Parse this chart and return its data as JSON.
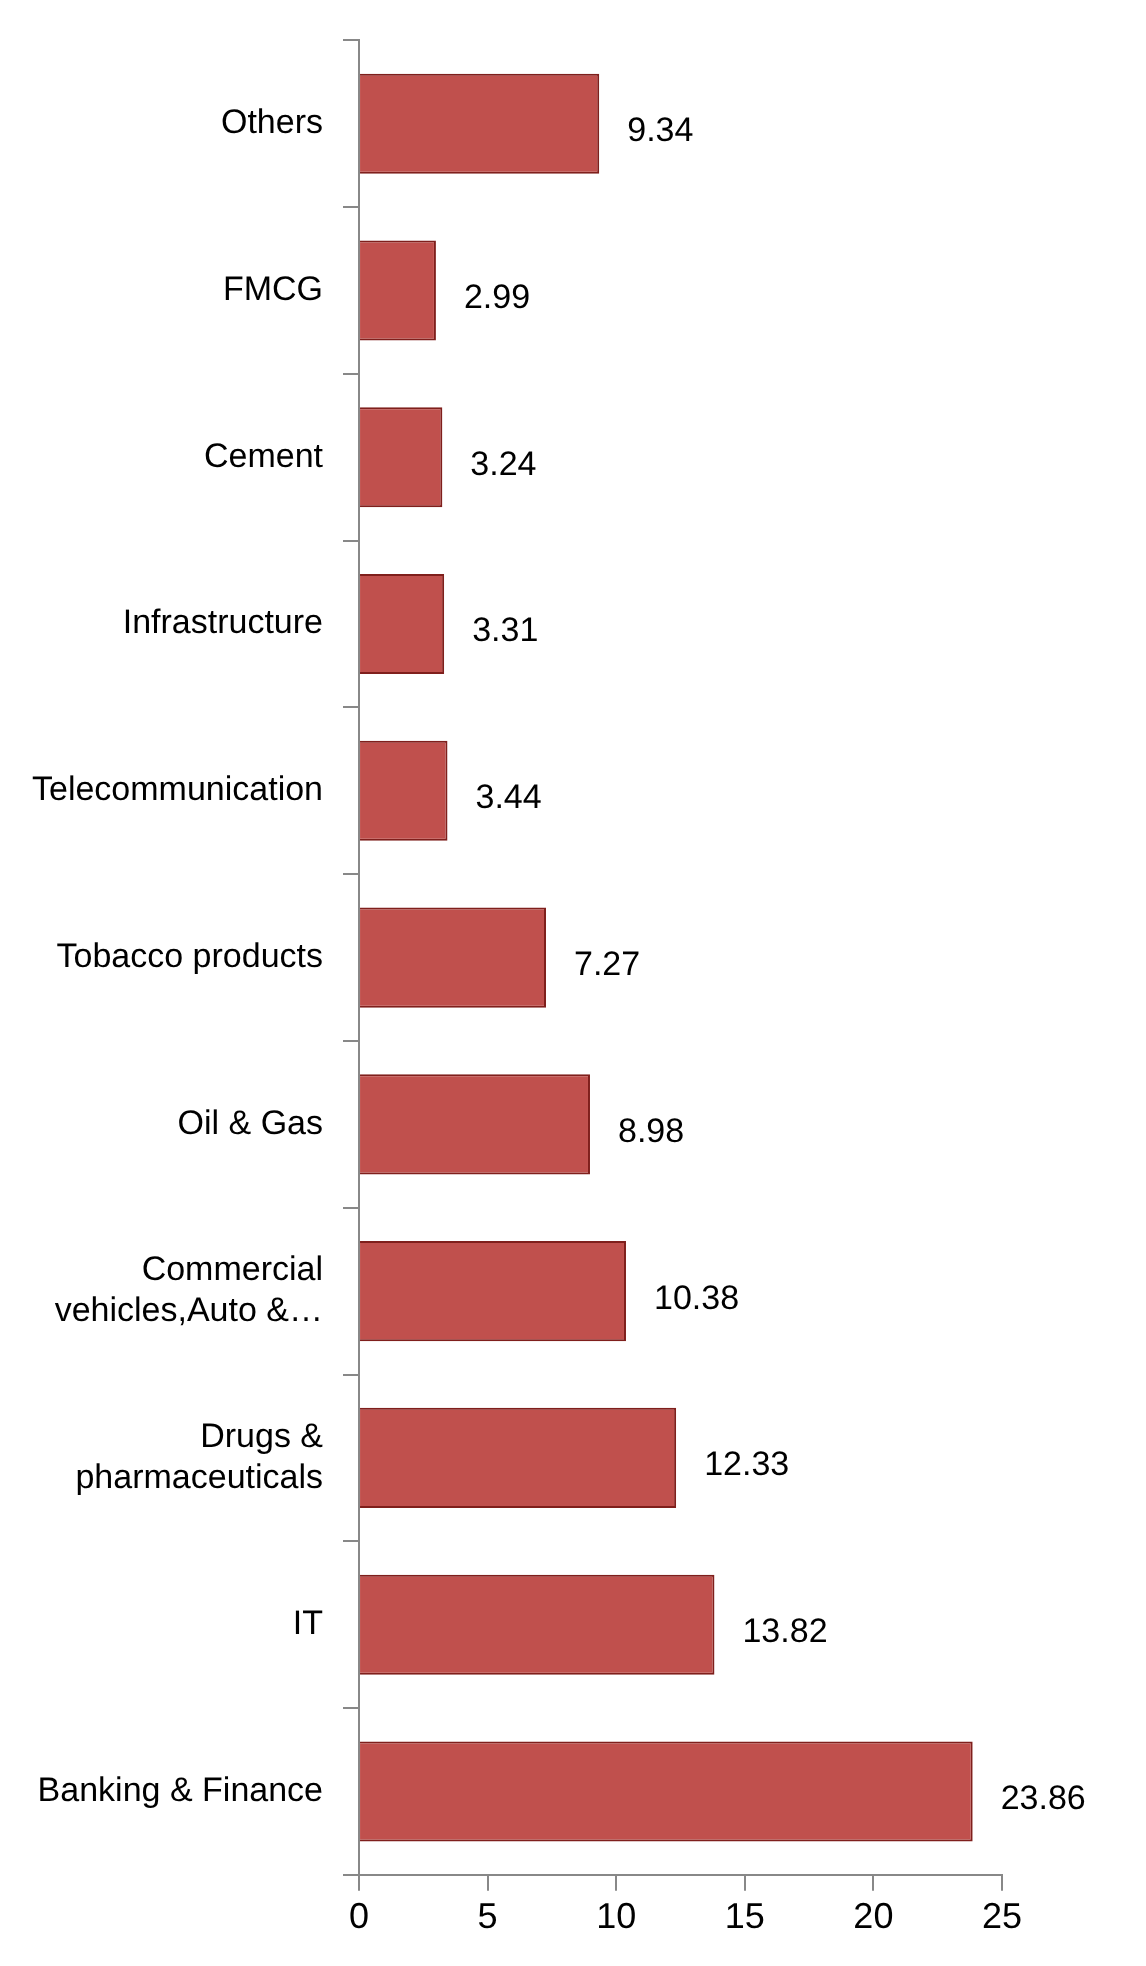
{
  "chart_data": {
    "type": "bar",
    "orientation": "horizontal",
    "categories": [
      "Others",
      "FMCG",
      "Cement",
      "Infrastructure",
      "Telecommunication",
      "Tobacco products",
      "Oil & Gas",
      "Commercial vehicles,Auto &…",
      "Drugs & pharmaceuticals",
      "IT",
      "Banking & Finance"
    ],
    "values": [
      9.34,
      2.99,
      3.24,
      3.31,
      3.44,
      7.27,
      8.98,
      10.38,
      12.33,
      13.82,
      23.86
    ],
    "color": "#c0504d",
    "xlim": [
      0,
      25
    ],
    "xticks": [
      0,
      5,
      10,
      15,
      20,
      25
    ],
    "data_labels": true,
    "legend": false
  }
}
